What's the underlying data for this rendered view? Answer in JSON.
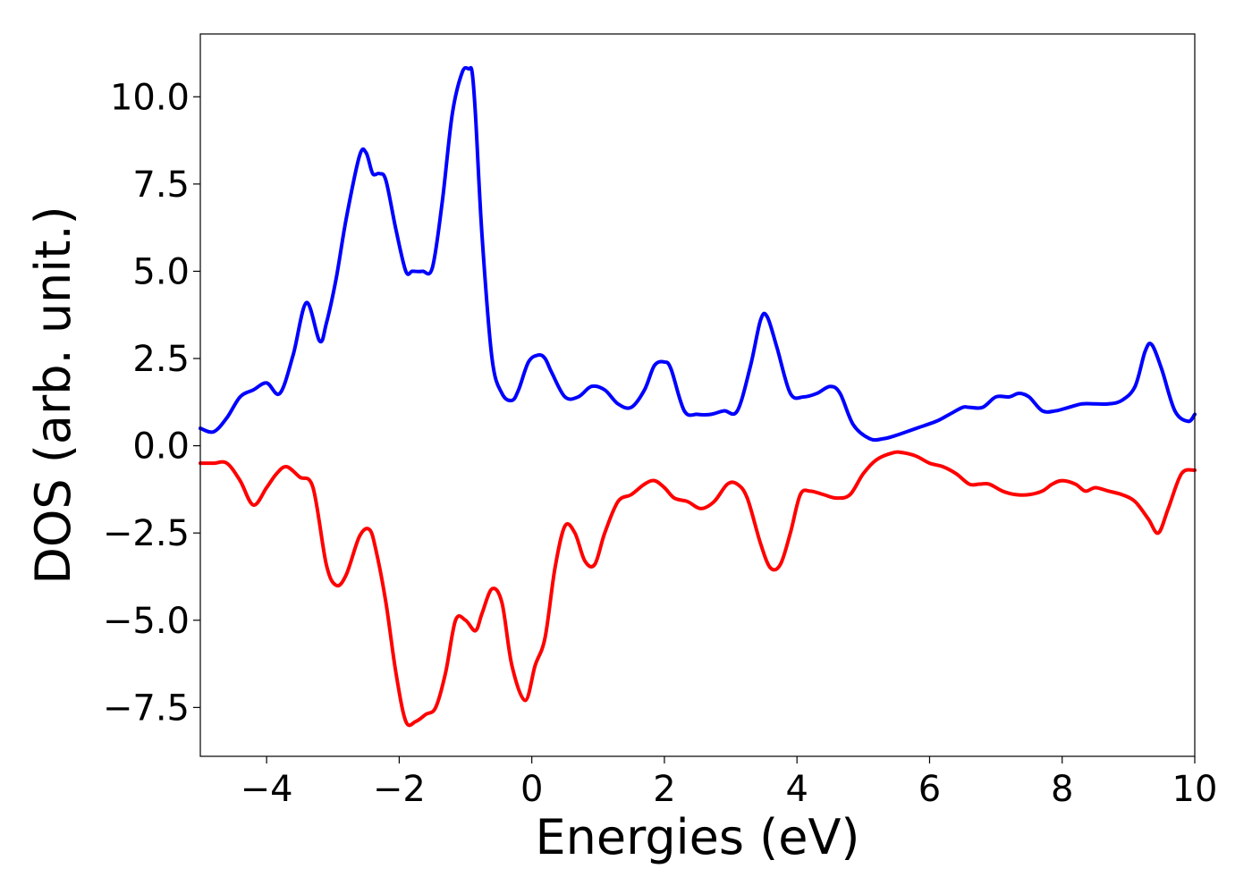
{
  "chart_data": {
    "type": "line",
    "title": "",
    "xlabel": "Energies (eV)",
    "ylabel": "DOS (arb. unit.)",
    "xlim": [
      -5,
      10
    ],
    "ylim": [
      -8.9,
      11.8
    ],
    "grid": false,
    "legend": "none",
    "x_ticks": [
      -4,
      -2,
      0,
      2,
      4,
      6,
      8,
      10
    ],
    "x_tick_labels": [
      "−4",
      "−2",
      "0",
      "2",
      "4",
      "6",
      "8",
      "10"
    ],
    "y_ticks": [
      10.0,
      7.5,
      5.0,
      2.5,
      0.0,
      -2.5,
      -5.0,
      -7.5
    ],
    "y_tick_labels": [
      "10.0",
      "7.5",
      "5.0",
      "2.5",
      "0.0",
      "−2.5",
      "−5.0",
      "−7.5"
    ],
    "series": [
      {
        "color": "#0000ff",
        "x": [
          -5.0,
          -4.8,
          -4.6,
          -4.4,
          -4.2,
          -4.0,
          -3.8,
          -3.6,
          -3.4,
          -3.2,
          -3.1,
          -2.95,
          -2.8,
          -2.6,
          -2.5,
          -2.4,
          -2.3,
          -2.2,
          -2.05,
          -1.9,
          -1.8,
          -1.65,
          -1.5,
          -1.35,
          -1.2,
          -1.05,
          -0.95,
          -0.9,
          -0.85,
          -0.75,
          -0.6,
          -0.45,
          -0.3,
          -0.2,
          -0.05,
          0.1,
          0.2,
          0.3,
          0.5,
          0.7,
          0.9,
          1.1,
          1.3,
          1.5,
          1.7,
          1.85,
          2.0,
          2.1,
          2.3,
          2.5,
          2.7,
          2.9,
          3.1,
          3.3,
          3.45,
          3.55,
          3.7,
          3.9,
          4.1,
          4.3,
          4.5,
          4.65,
          4.85,
          5.1,
          5.3,
          5.5,
          5.8,
          6.1,
          6.3,
          6.5,
          6.6,
          6.8,
          7.0,
          7.2,
          7.35,
          7.5,
          7.7,
          7.9,
          8.1,
          8.3,
          8.5,
          8.7,
          8.9,
          9.1,
          9.25,
          9.35,
          9.5,
          9.7,
          9.9,
          10.0
        ],
        "y": [
          0.5,
          0.4,
          0.8,
          1.4,
          1.6,
          1.8,
          1.5,
          2.6,
          4.1,
          3.0,
          3.5,
          4.8,
          6.5,
          8.3,
          8.4,
          7.8,
          7.8,
          7.6,
          6.2,
          5.0,
          5.0,
          5.0,
          5.1,
          7.0,
          9.5,
          10.7,
          10.8,
          10.7,
          9.5,
          6.0,
          2.5,
          1.5,
          1.3,
          1.6,
          2.4,
          2.6,
          2.5,
          2.1,
          1.4,
          1.4,
          1.7,
          1.6,
          1.2,
          1.1,
          1.6,
          2.3,
          2.4,
          2.2,
          1.0,
          0.9,
          0.9,
          1.0,
          1.0,
          2.3,
          3.6,
          3.7,
          2.8,
          1.5,
          1.4,
          1.5,
          1.7,
          1.5,
          0.6,
          0.2,
          0.2,
          0.3,
          0.5,
          0.7,
          0.9,
          1.1,
          1.1,
          1.1,
          1.4,
          1.4,
          1.5,
          1.4,
          1.0,
          1.0,
          1.1,
          1.2,
          1.2,
          1.2,
          1.3,
          1.7,
          2.7,
          2.9,
          2.2,
          1.0,
          0.7,
          0.9
        ]
      },
      {
        "color": "#ff0000",
        "x": [
          -5.0,
          -4.8,
          -4.6,
          -4.4,
          -4.2,
          -4.0,
          -3.85,
          -3.7,
          -3.5,
          -3.3,
          -3.1,
          -2.95,
          -2.8,
          -2.6,
          -2.45,
          -2.35,
          -2.2,
          -2.05,
          -1.9,
          -1.75,
          -1.6,
          -1.45,
          -1.3,
          -1.15,
          -1.0,
          -0.85,
          -0.75,
          -0.6,
          -0.45,
          -0.3,
          -0.1,
          0.05,
          0.2,
          0.35,
          0.5,
          0.65,
          0.8,
          0.95,
          1.1,
          1.3,
          1.5,
          1.7,
          1.85,
          2.0,
          2.15,
          2.35,
          2.55,
          2.75,
          2.95,
          3.1,
          3.25,
          3.45,
          3.6,
          3.75,
          3.9,
          4.05,
          4.2,
          4.4,
          4.6,
          4.8,
          5.0,
          5.2,
          5.45,
          5.6,
          5.8,
          6.0,
          6.2,
          6.4,
          6.6,
          6.75,
          6.9,
          7.1,
          7.3,
          7.5,
          7.7,
          7.85,
          8.0,
          8.2,
          8.35,
          8.5,
          8.7,
          8.9,
          9.1,
          9.3,
          9.45,
          9.6,
          9.8,
          10.0
        ],
        "y": [
          -0.5,
          -0.5,
          -0.5,
          -1.0,
          -1.7,
          -1.2,
          -0.8,
          -0.6,
          -0.9,
          -1.2,
          -3.4,
          -4.0,
          -3.7,
          -2.6,
          -2.4,
          -3.0,
          -4.5,
          -6.5,
          -7.9,
          -7.9,
          -7.7,
          -7.5,
          -6.5,
          -5.0,
          -5.0,
          -5.3,
          -4.8,
          -4.1,
          -4.5,
          -6.3,
          -7.3,
          -6.3,
          -5.5,
          -3.5,
          -2.3,
          -2.5,
          -3.3,
          -3.4,
          -2.5,
          -1.6,
          -1.4,
          -1.1,
          -1.0,
          -1.2,
          -1.5,
          -1.6,
          -1.8,
          -1.6,
          -1.1,
          -1.1,
          -1.5,
          -2.8,
          -3.5,
          -3.4,
          -2.5,
          -1.4,
          -1.3,
          -1.4,
          -1.5,
          -1.4,
          -0.8,
          -0.4,
          -0.2,
          -0.2,
          -0.3,
          -0.5,
          -0.6,
          -0.8,
          -1.1,
          -1.1,
          -1.1,
          -1.3,
          -1.4,
          -1.4,
          -1.3,
          -1.1,
          -1.0,
          -1.1,
          -1.3,
          -1.2,
          -1.3,
          -1.4,
          -1.6,
          -2.1,
          -2.5,
          -1.8,
          -0.8,
          -0.7
        ]
      }
    ]
  }
}
